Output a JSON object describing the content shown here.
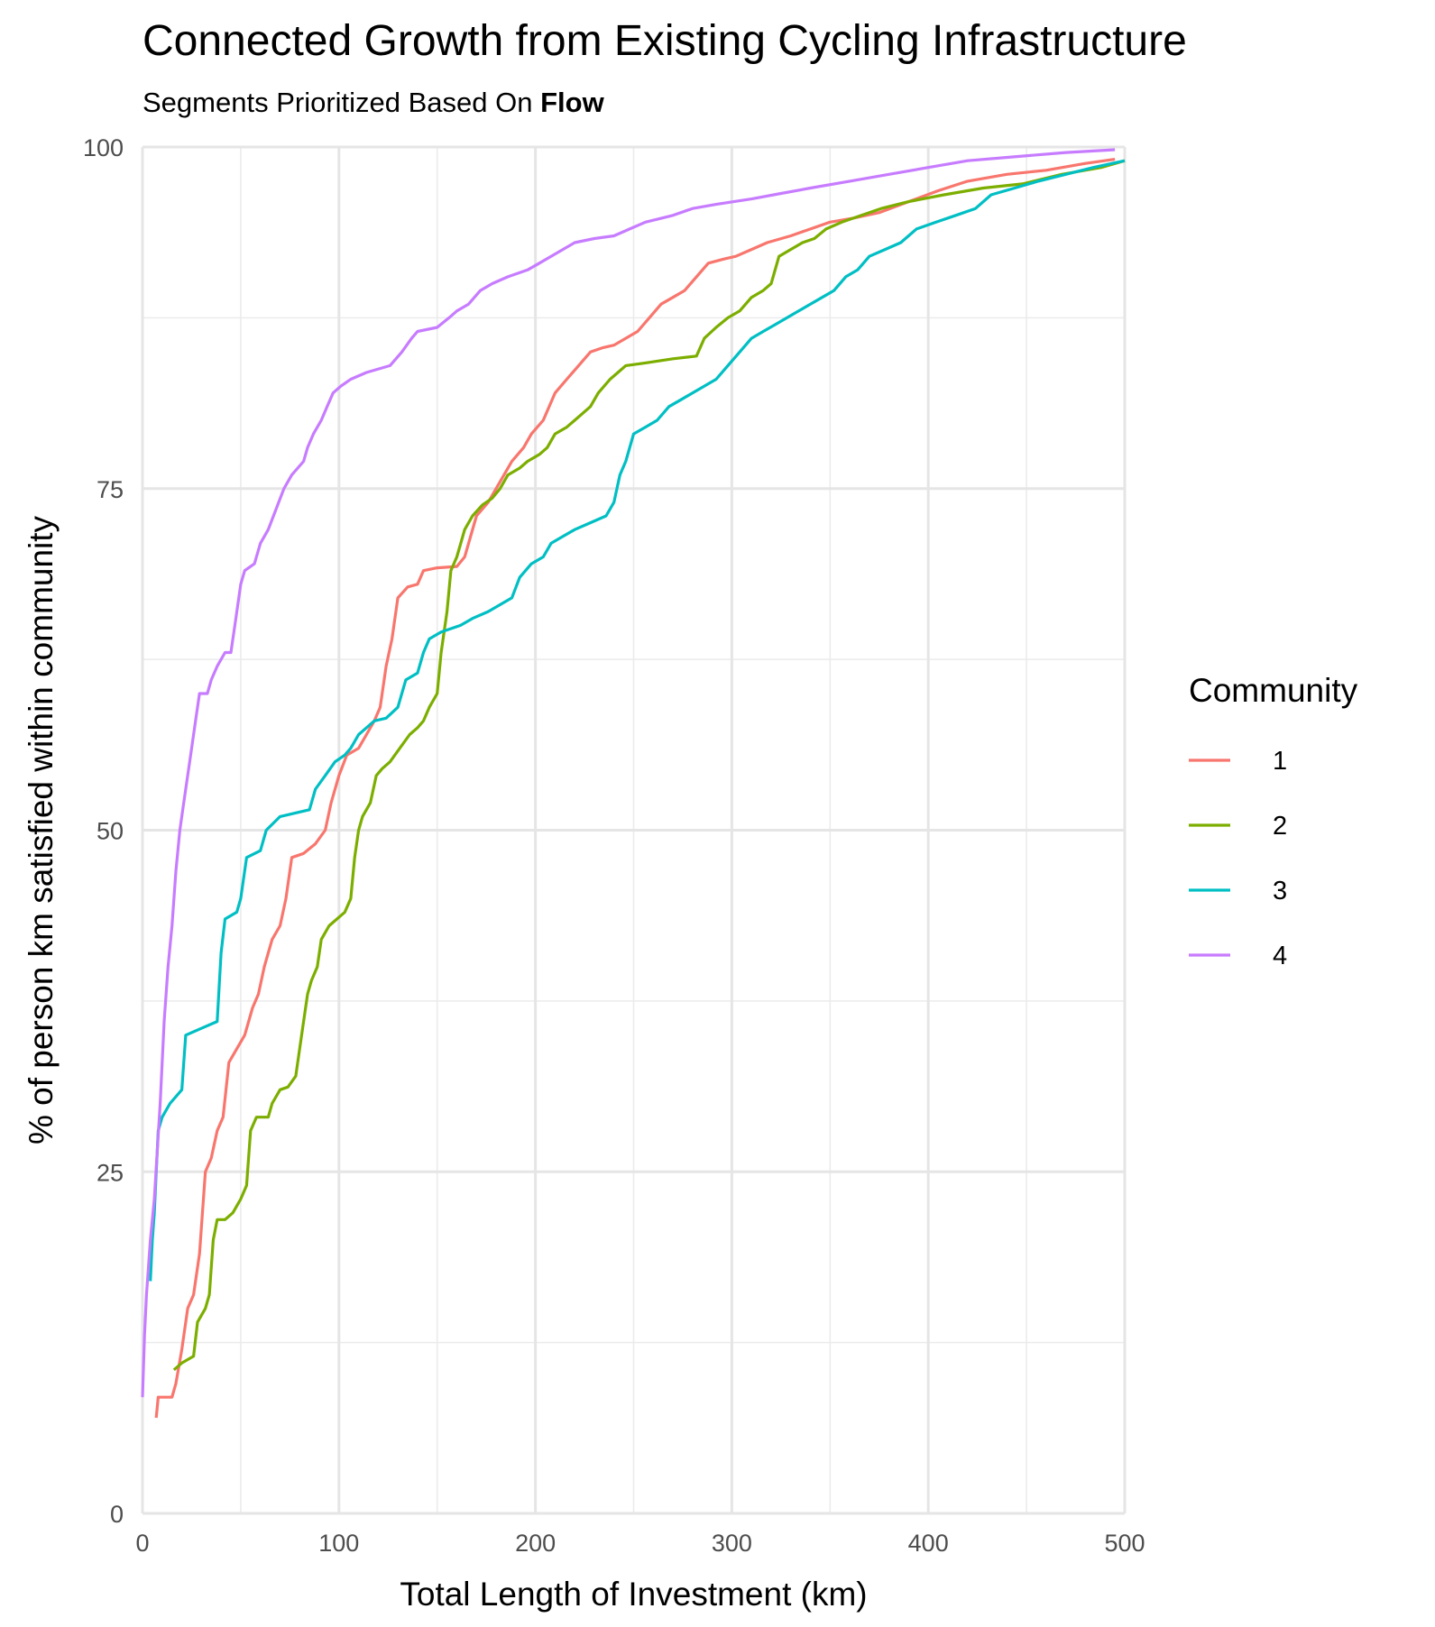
{
  "chart_data": {
    "type": "line",
    "title": "Connected Growth from Existing Cycling Infrastructure",
    "subtitle_prefix": "Segments Prioritized Based On ",
    "subtitle_bold": "Flow",
    "xlabel": "Total Length of Investment (km)",
    "ylabel": "% of person km satisfied within community",
    "xlim": [
      0,
      500
    ],
    "ylim": [
      0,
      100
    ],
    "xticks": [
      "0",
      "100",
      "200",
      "300",
      "400",
      "500"
    ],
    "yticks": [
      "0",
      "25",
      "50",
      "75",
      "100"
    ],
    "grid": true,
    "legend": {
      "title": "Community",
      "position": "right"
    },
    "series": [
      {
        "name": "1",
        "color": "#F8766D",
        "points": [
          [
            7,
            7
          ],
          [
            8,
            8.5
          ],
          [
            15,
            8.5
          ],
          [
            17,
            9.5
          ],
          [
            20,
            12
          ],
          [
            23,
            15
          ],
          [
            26,
            16
          ],
          [
            29,
            19
          ],
          [
            32,
            25
          ],
          [
            35,
            26
          ],
          [
            38,
            28
          ],
          [
            41,
            29
          ],
          [
            44,
            33
          ],
          [
            48,
            34
          ],
          [
            52,
            35
          ],
          [
            56,
            37
          ],
          [
            59,
            38
          ],
          [
            62,
            40
          ],
          [
            66,
            42
          ],
          [
            70,
            43
          ],
          [
            73,
            45
          ],
          [
            76,
            48
          ],
          [
            82,
            48.3
          ],
          [
            88,
            49
          ],
          [
            93,
            50
          ],
          [
            96,
            52
          ],
          [
            100,
            54
          ],
          [
            104,
            55.5
          ],
          [
            110,
            56
          ],
          [
            114,
            57
          ],
          [
            118,
            58
          ],
          [
            121,
            59
          ],
          [
            124,
            62
          ],
          [
            127,
            64
          ],
          [
            130,
            67
          ],
          [
            135,
            67.8
          ],
          [
            140,
            68
          ],
          [
            143,
            69
          ],
          [
            150,
            69.2
          ],
          [
            160,
            69.3
          ],
          [
            164,
            70
          ],
          [
            170,
            73
          ],
          [
            176,
            74
          ],
          [
            180,
            75
          ],
          [
            184,
            76
          ],
          [
            188,
            77
          ],
          [
            194,
            78
          ],
          [
            198,
            79
          ],
          [
            204,
            80
          ],
          [
            210,
            82
          ],
          [
            216,
            83
          ],
          [
            222,
            84
          ],
          [
            228,
            85
          ],
          [
            234,
            85.3
          ],
          [
            240,
            85.5
          ],
          [
            246,
            86
          ],
          [
            252,
            86.5
          ],
          [
            258,
            87.5
          ],
          [
            264,
            88.5
          ],
          [
            270,
            89
          ],
          [
            276,
            89.5
          ],
          [
            282,
            90.5
          ],
          [
            288,
            91.5
          ],
          [
            296,
            91.8
          ],
          [
            302,
            92
          ],
          [
            310,
            92.5
          ],
          [
            318,
            93
          ],
          [
            330,
            93.5
          ],
          [
            340,
            94
          ],
          [
            350,
            94.5
          ],
          [
            362,
            94.8
          ],
          [
            375,
            95.2
          ],
          [
            390,
            96
          ],
          [
            405,
            96.8
          ],
          [
            420,
            97.5
          ],
          [
            440,
            98
          ],
          [
            460,
            98.3
          ],
          [
            480,
            98.8
          ],
          [
            495,
            99.1
          ]
        ]
      },
      {
        "name": "2",
        "color": "#7CAE00",
        "points": [
          [
            16,
            10.5
          ],
          [
            20,
            11
          ],
          [
            26,
            11.5
          ],
          [
            28,
            14
          ],
          [
            32,
            15
          ],
          [
            34,
            16
          ],
          [
            36,
            20
          ],
          [
            38,
            21.5
          ],
          [
            42,
            21.5
          ],
          [
            46,
            22
          ],
          [
            50,
            23
          ],
          [
            53,
            24
          ],
          [
            55,
            28
          ],
          [
            58,
            29
          ],
          [
            64,
            29
          ],
          [
            66,
            30
          ],
          [
            70,
            31
          ],
          [
            74,
            31.2
          ],
          [
            78,
            32
          ],
          [
            81,
            35
          ],
          [
            84,
            38
          ],
          [
            86,
            39
          ],
          [
            89,
            40
          ],
          [
            91,
            42
          ],
          [
            95,
            43
          ],
          [
            103,
            44
          ],
          [
            106,
            45
          ],
          [
            108,
            48
          ],
          [
            110,
            50
          ],
          [
            112,
            51
          ],
          [
            116,
            52
          ],
          [
            119,
            54
          ],
          [
            122,
            54.5
          ],
          [
            126,
            55
          ],
          [
            131,
            56
          ],
          [
            136,
            57
          ],
          [
            140,
            57.5
          ],
          [
            143,
            58
          ],
          [
            146,
            59
          ],
          [
            150,
            60
          ],
          [
            152,
            63
          ],
          [
            155,
            66
          ],
          [
            157,
            69
          ],
          [
            160,
            70
          ],
          [
            164,
            72
          ],
          [
            168,
            73
          ],
          [
            173,
            73.8
          ],
          [
            178,
            74.3
          ],
          [
            182,
            75
          ],
          [
            186,
            76
          ],
          [
            192,
            76.5
          ],
          [
            196,
            77
          ],
          [
            202,
            77.5
          ],
          [
            206,
            78
          ],
          [
            210,
            79
          ],
          [
            216,
            79.5
          ],
          [
            220,
            80
          ],
          [
            224,
            80.5
          ],
          [
            228,
            81
          ],
          [
            232,
            82
          ],
          [
            238,
            83
          ],
          [
            242,
            83.5
          ],
          [
            246,
            84
          ],
          [
            256,
            84.2
          ],
          [
            270,
            84.5
          ],
          [
            282,
            84.7
          ],
          [
            286,
            86
          ],
          [
            292,
            86.8
          ],
          [
            298,
            87.5
          ],
          [
            304,
            88
          ],
          [
            310,
            89
          ],
          [
            316,
            89.5
          ],
          [
            320,
            90
          ],
          [
            324,
            92
          ],
          [
            330,
            92.5
          ],
          [
            336,
            93
          ],
          [
            342,
            93.3
          ],
          [
            348,
            94
          ],
          [
            356,
            94.5
          ],
          [
            366,
            95
          ],
          [
            376,
            95.5
          ],
          [
            390,
            96
          ],
          [
            408,
            96.5
          ],
          [
            428,
            97
          ],
          [
            448,
            97.3
          ],
          [
            468,
            98
          ],
          [
            488,
            98.5
          ],
          [
            500,
            99
          ]
        ]
      },
      {
        "name": "3",
        "color": "#00BFC4",
        "points": [
          [
            4,
            17
          ],
          [
            5,
            20
          ],
          [
            6,
            22
          ],
          [
            8,
            28
          ],
          [
            10,
            29
          ],
          [
            14,
            30
          ],
          [
            20,
            31
          ],
          [
            22,
            35
          ],
          [
            30,
            35.5
          ],
          [
            38,
            36
          ],
          [
            40,
            41
          ],
          [
            42,
            43.5
          ],
          [
            48,
            44
          ],
          [
            50,
            45
          ],
          [
            53,
            48
          ],
          [
            60,
            48.5
          ],
          [
            63,
            50
          ],
          [
            70,
            51
          ],
          [
            85,
            51.5
          ],
          [
            88,
            53
          ],
          [
            93,
            54
          ],
          [
            98,
            55
          ],
          [
            103,
            55.5
          ],
          [
            106,
            56
          ],
          [
            110,
            57
          ],
          [
            114,
            57.5
          ],
          [
            118,
            58
          ],
          [
            124,
            58.2
          ],
          [
            130,
            59
          ],
          [
            134,
            61
          ],
          [
            140,
            61.5
          ],
          [
            143,
            63
          ],
          [
            146,
            64
          ],
          [
            152,
            64.5
          ],
          [
            162,
            65
          ],
          [
            168,
            65.5
          ],
          [
            176,
            66
          ],
          [
            182,
            66.5
          ],
          [
            188,
            67
          ],
          [
            192,
            68.5
          ],
          [
            198,
            69.5
          ],
          [
            204,
            70
          ],
          [
            208,
            71
          ],
          [
            214,
            71.5
          ],
          [
            220,
            72
          ],
          [
            228,
            72.5
          ],
          [
            236,
            73
          ],
          [
            240,
            74
          ],
          [
            243,
            76
          ],
          [
            246,
            77
          ],
          [
            250,
            79
          ],
          [
            256,
            79.5
          ],
          [
            262,
            80
          ],
          [
            268,
            81
          ],
          [
            274,
            81.5
          ],
          [
            280,
            82
          ],
          [
            286,
            82.5
          ],
          [
            292,
            83
          ],
          [
            298,
            84
          ],
          [
            304,
            85
          ],
          [
            310,
            86
          ],
          [
            316,
            86.5
          ],
          [
            322,
            87
          ],
          [
            328,
            87.5
          ],
          [
            334,
            88
          ],
          [
            340,
            88.5
          ],
          [
            346,
            89
          ],
          [
            352,
            89.5
          ],
          [
            358,
            90.5
          ],
          [
            364,
            91
          ],
          [
            370,
            92
          ],
          [
            378,
            92.5
          ],
          [
            386,
            93
          ],
          [
            394,
            94
          ],
          [
            404,
            94.5
          ],
          [
            414,
            95
          ],
          [
            424,
            95.5
          ],
          [
            432,
            96.5
          ],
          [
            444,
            97
          ],
          [
            456,
            97.5
          ],
          [
            470,
            98
          ],
          [
            484,
            98.5
          ],
          [
            500,
            99
          ]
        ]
      },
      {
        "name": "4",
        "color": "#C77CFF",
        "points": [
          [
            0,
            8.5
          ],
          [
            1,
            13
          ],
          [
            2,
            16
          ],
          [
            4,
            20
          ],
          [
            6,
            23
          ],
          [
            9,
            30
          ],
          [
            11,
            36
          ],
          [
            13,
            40
          ],
          [
            15,
            43
          ],
          [
            17,
            47
          ],
          [
            19,
            50
          ],
          [
            21,
            52
          ],
          [
            24,
            55
          ],
          [
            27,
            58
          ],
          [
            29,
            60
          ],
          [
            33,
            60
          ],
          [
            35,
            61
          ],
          [
            38,
            62
          ],
          [
            42,
            63
          ],
          [
            45,
            63
          ],
          [
            47,
            65
          ],
          [
            50,
            68
          ],
          [
            52,
            69
          ],
          [
            57,
            69.5
          ],
          [
            60,
            71
          ],
          [
            64,
            72
          ],
          [
            68,
            73.5
          ],
          [
            72,
            75
          ],
          [
            76,
            76
          ],
          [
            79,
            76.5
          ],
          [
            82,
            77
          ],
          [
            84,
            78
          ],
          [
            87,
            79
          ],
          [
            91,
            80
          ],
          [
            94,
            81
          ],
          [
            97,
            82
          ],
          [
            101,
            82.5
          ],
          [
            106,
            83
          ],
          [
            114,
            83.5
          ],
          [
            126,
            84
          ],
          [
            132,
            85
          ],
          [
            137,
            86
          ],
          [
            140,
            86.5
          ],
          [
            150,
            86.8
          ],
          [
            156,
            87.5
          ],
          [
            160,
            88
          ],
          [
            166,
            88.5
          ],
          [
            172,
            89.5
          ],
          [
            178,
            90
          ],
          [
            186,
            90.5
          ],
          [
            196,
            91
          ],
          [
            202,
            91.5
          ],
          [
            208,
            92
          ],
          [
            214,
            92.5
          ],
          [
            220,
            93
          ],
          [
            230,
            93.3
          ],
          [
            240,
            93.5
          ],
          [
            248,
            94
          ],
          [
            256,
            94.5
          ],
          [
            270,
            95
          ],
          [
            280,
            95.5
          ],
          [
            292,
            95.8
          ],
          [
            310,
            96.2
          ],
          [
            325,
            96.6
          ],
          [
            340,
            97
          ],
          [
            360,
            97.5
          ],
          [
            380,
            98
          ],
          [
            400,
            98.5
          ],
          [
            420,
            99
          ],
          [
            445,
            99.3
          ],
          [
            470,
            99.6
          ],
          [
            495,
            99.8
          ]
        ]
      }
    ]
  }
}
